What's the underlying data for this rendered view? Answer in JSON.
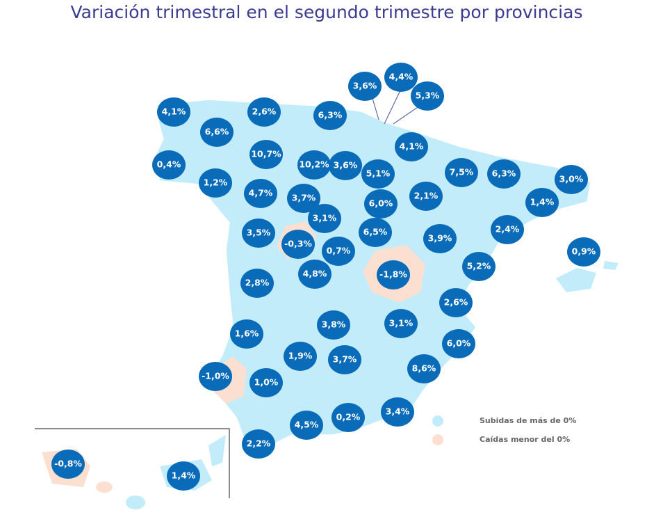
{
  "header": {
    "title": "Variación trimestral en el segundo trimestre por provincias"
  },
  "map": {
    "labels": [
      "4,1%",
      "2,6%",
      "6,3%",
      "3,6%",
      "4,4%",
      "5,3%",
      "6,6%",
      "10,7%",
      "0,4%",
      "1,2%",
      "10,2%",
      "3,6%",
      "5,1%",
      "4,1%",
      "7,5%",
      "6,3%",
      "3,0%",
      "1,4%",
      "4,7%",
      "3,7%",
      "6,0%",
      "2,1%",
      "3,1%",
      "3,5%",
      "-0,3%",
      "0,7%",
      "6,5%",
      "3,9%",
      "2,4%",
      "0,9%",
      "5,2%",
      "2,8%",
      "4,8%",
      "-1,8%",
      "2,6%",
      "1,6%",
      "3,8%",
      "3,1%",
      "6,0%",
      "1,9%",
      "3,7%",
      "8,6%",
      "-1,0%",
      "1,0%",
      "4,5%",
      "0,2%",
      "3,4%",
      "2,2%",
      "-0,8%",
      "1,4%"
    ]
  },
  "legend": {
    "items": [
      "Subidas de más de 0%",
      "Caídas menor del 0%"
    ]
  }
}
